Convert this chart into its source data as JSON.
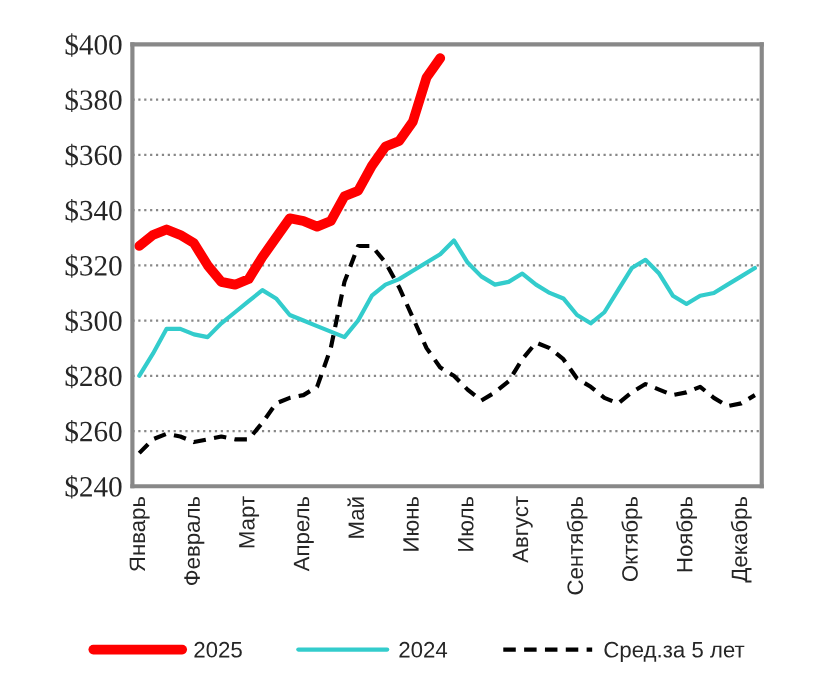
{
  "chart_data": {
    "type": "line",
    "categories": [
      "Январь",
      null,
      null,
      null,
      "Февраль",
      null,
      null,
      null,
      "Март",
      null,
      null,
      null,
      "Апрель",
      null,
      null,
      null,
      "Май",
      null,
      null,
      null,
      "Июнь",
      null,
      null,
      null,
      "Июль",
      null,
      null,
      null,
      "Август",
      null,
      null,
      null,
      "Сентябрь",
      null,
      null,
      null,
      "Октябрь",
      null,
      null,
      null,
      "Ноябрь",
      null,
      null,
      null,
      "Декабрь",
      null
    ],
    "ylim": [
      240,
      400
    ],
    "yticks": [
      {
        "value": 240,
        "label": "$240"
      },
      {
        "value": 260,
        "label": "$260"
      },
      {
        "value": 280,
        "label": "$280"
      },
      {
        "value": 300,
        "label": "$300"
      },
      {
        "value": 320,
        "label": "$320"
      },
      {
        "value": 340,
        "label": "$340"
      },
      {
        "value": 360,
        "label": "$360"
      },
      {
        "value": 380,
        "label": "$380"
      },
      {
        "value": 400,
        "label": "$400"
      }
    ],
    "grid": "y",
    "legend": "bottom",
    "marker": "none",
    "series": [
      {
        "name": "2025",
        "color": "#ff0000",
        "line_style": "solid",
        "values": [
          327,
          331,
          333,
          331,
          328,
          320,
          314,
          313,
          315,
          323,
          330,
          337,
          336,
          334,
          336,
          345,
          347,
          356,
          363,
          365,
          372,
          388,
          395,
          null,
          null,
          null,
          null,
          null,
          null,
          null,
          null,
          null,
          null,
          null,
          null,
          null,
          null,
          null,
          null,
          null,
          null,
          null,
          null,
          null,
          null,
          null
        ]
      },
      {
        "name": "2024",
        "color": "#33cccc",
        "line_style": "solid",
        "values": [
          280,
          288,
          297,
          297,
          295,
          294,
          299,
          303,
          307,
          311,
          308,
          302,
          300,
          298,
          296,
          294,
          300,
          309,
          313,
          315,
          318,
          321,
          324,
          329,
          321,
          316,
          313,
          314,
          317,
          313,
          310,
          308,
          302,
          299,
          303,
          311,
          319,
          322,
          317,
          309,
          306,
          309,
          310,
          313,
          316,
          319
        ]
      },
      {
        "name": "Сред.за 5 лет",
        "color": "#000000",
        "line_style": "dashed",
        "values": [
          252,
          257,
          259,
          258,
          256,
          257,
          258,
          257,
          257,
          263,
          270,
          272,
          273,
          276,
          290,
          314,
          327,
          327,
          321,
          312,
          301,
          290,
          283,
          280,
          275,
          271,
          274,
          278,
          286,
          292,
          290,
          286,
          279,
          276,
          272,
          270,
          274,
          277,
          275,
          273,
          274,
          276,
          272,
          269,
          270,
          273
        ]
      }
    ]
  }
}
